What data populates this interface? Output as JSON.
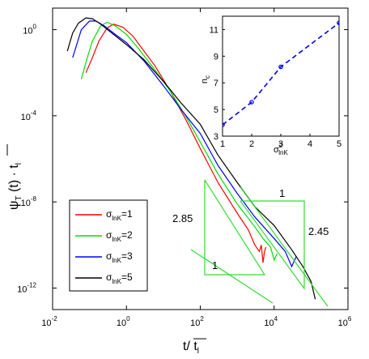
{
  "chart_data": [
    {
      "type": "line",
      "scale": {
        "x": "log",
        "y": "log"
      },
      "xlim": [
        0.01,
        1000000
      ],
      "ylim": [
        1e-13,
        10
      ],
      "grid": false,
      "legend_position": "bottom-left",
      "xlabel": "t/ t̅l",
      "ylabel": "ψᴛ (t) · t̅l",
      "xticks": [
        {
          "value": 0.01,
          "base": "10",
          "exp": "-2"
        },
        {
          "value": 1,
          "base": "10",
          "exp": "0"
        },
        {
          "value": 100,
          "base": "10",
          "exp": "2"
        },
        {
          "value": 10000,
          "base": "10",
          "exp": "4"
        },
        {
          "value": 1000000,
          "base": "10",
          "exp": "6"
        }
      ],
      "yticks": [
        {
          "value": 1,
          "base": "10",
          "exp": "0"
        },
        {
          "value": 0.0001,
          "base": "10",
          "exp": "-4"
        },
        {
          "value": 1e-08,
          "base": "10",
          "exp": "-8"
        },
        {
          "value": 1e-12,
          "base": "10",
          "exp": "-12"
        }
      ],
      "series": [
        {
          "name": "σlnK=1",
          "color": "#ff0000",
          "x": [
            0.08,
            0.12,
            0.18,
            0.3,
            0.45,
            0.8,
            1.5,
            3,
            6,
            15,
            40,
            100,
            300,
            1000,
            2000,
            3000,
            4000,
            4500,
            5000,
            5500,
            6000
          ],
          "y": [
            0.01,
            0.05,
            0.3,
            1.2,
            1.8,
            1.3,
            0.5,
            0.1,
            0.02,
            0.0015,
            7e-05,
            3e-06,
            8e-08,
            3e-09,
            5e-10,
            1e-10,
            5e-11,
            1e-10,
            1.5e-11,
            5e-11,
            8e-11
          ]
        },
        {
          "name": "σlnK=2",
          "color": "#00dd00",
          "x": [
            0.06,
            0.08,
            0.12,
            0.2,
            0.3,
            0.5,
            1,
            2,
            5,
            15,
            40,
            100,
            300,
            1000,
            3000,
            5000,
            8000,
            10000,
            12000
          ],
          "y": [
            0.005,
            0.03,
            0.3,
            1.5,
            2.2,
            1.5,
            0.6,
            0.15,
            0.02,
            0.0015,
            0.0001,
            6e-06,
            2e-07,
            8e-09,
            7e-10,
            2e-10,
            8e-11,
            2e-11,
            4e-11
          ]
        },
        {
          "name": "σlnK=3",
          "color": "#0000ff",
          "x": [
            0.035,
            0.045,
            0.06,
            0.1,
            0.15,
            0.25,
            0.5,
            1,
            3,
            10,
            30,
            100,
            300,
            1000,
            3000,
            10000,
            20000,
            30000,
            40000
          ],
          "y": [
            0.05,
            0.2,
            1,
            2.5,
            2.5,
            1.5,
            0.6,
            0.25,
            0.035,
            0.0025,
            0.0002,
            1.5e-05,
            5e-07,
            2.5e-08,
            2e-09,
            2e-10,
            5e-11,
            1e-11,
            3e-11
          ]
        },
        {
          "name": "σlnK=5",
          "color": "#000000",
          "x": [
            0.025,
            0.035,
            0.05,
            0.08,
            0.12,
            0.2,
            0.4,
            1,
            3,
            10,
            30,
            100,
            300,
            1000,
            3000,
            10000,
            30000,
            60000,
            100000,
            130000
          ],
          "y": [
            0.1,
            0.7,
            2,
            3.5,
            3.2,
            1.8,
            0.7,
            0.2,
            0.04,
            0.004,
            0.0004,
            4e-05,
            1.5e-06,
            8e-08,
            6e-09,
            8e-10,
            6e-11,
            1e-11,
            2e-12,
            3e-13
          ]
        }
      ],
      "annotations": [
        {
          "text": "2.85",
          "kind": "slope-label"
        },
        {
          "text": "1",
          "kind": "run-label"
        },
        {
          "text": "1",
          "kind": "run-label"
        },
        {
          "text": "2.45",
          "kind": "slope-label"
        }
      ],
      "guide_triangles": [
        {
          "slope_label": "2.85",
          "color": "#33dd33"
        },
        {
          "slope_label": "2.45",
          "color": "#33dd33"
        }
      ]
    },
    {
      "type": "line",
      "inset": true,
      "xlim": [
        1,
        5
      ],
      "ylim": [
        3,
        12
      ],
      "xlabel": "σ²lnK",
      "ylabel": "nc",
      "xticks": [
        "1",
        "2",
        "3",
        "4",
        "5"
      ],
      "yticks": [
        "3",
        "5",
        "7",
        "9",
        "11"
      ],
      "series": [
        {
          "color": "#0000ff",
          "style": "dashed",
          "marker": "circle",
          "x": [
            1,
            2,
            3,
            5
          ],
          "y": [
            3.85,
            5.55,
            8.2,
            11.5
          ]
        }
      ]
    }
  ]
}
